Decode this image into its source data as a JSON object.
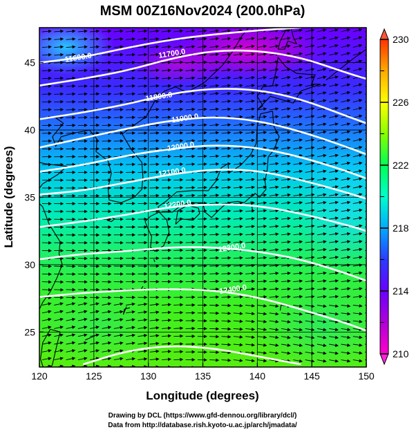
{
  "figure": {
    "title": "MSM 00Z16Nov2024 (200.0hPa)",
    "xlabel": "Longitude (degrees)",
    "ylabel": "Latitude  (degrees)",
    "credit_line1": "Drawing by DCL (https://www.gfd-dennou.org/library/dcl/)",
    "credit_line2": "Data from http://database.rish.kyoto-u.ac.jp/arch/jmadata/"
  },
  "map_data": {
    "type": "heatmap",
    "projection": "equirectangular",
    "lon_range": [
      120,
      150
    ],
    "lat_range": [
      22.4,
      47.6
    ],
    "x_ticks": [
      "120",
      "125",
      "130",
      "135",
      "140",
      "145",
      "150"
    ],
    "y_ticks": [
      "25",
      "30",
      "35",
      "40",
      "45"
    ],
    "gridlines": true,
    "colorbar": {
      "min": 210,
      "max": 230,
      "tick_labels": [
        "210",
        "214",
        "218",
        "222",
        "226",
        "230"
      ],
      "colors": [
        "#ff00cc",
        "#b000d8",
        "#6a00ff",
        "#3333ff",
        "#00aaff",
        "#00ffcc",
        "#00ff55",
        "#88ff00",
        "#ffff00",
        "#ffaa00",
        "#ff3300"
      ],
      "extend_arrows": true
    },
    "height_contours": [
      {
        "label": "11600.0",
        "label_lon": 123.6,
        "label_lat": 45.2
      },
      {
        "label": "11700.0",
        "label_lon": 132.2,
        "label_lat": 45.5
      },
      {
        "label": "11800.0",
        "label_lon": 131.0,
        "label_lat": 42.3
      },
      {
        "label": "11900.0",
        "label_lon": 133.4,
        "label_lat": 40.7
      },
      {
        "label": "12000.0",
        "label_lon": 133.0,
        "label_lat": 38.6
      },
      {
        "label": "12100.0",
        "label_lon": 132.2,
        "label_lat": 36.7
      },
      {
        "label": "12200.0",
        "label_lon": 132.7,
        "label_lat": 34.3
      },
      {
        "label": "12300.0",
        "label_lon": 137.7,
        "label_lat": 31.1
      },
      {
        "label": "12400.0",
        "label_lon": 137.8,
        "label_lat": 28.0
      }
    ],
    "wind_vectors": "dense westerly streamlines over the whole domain"
  }
}
